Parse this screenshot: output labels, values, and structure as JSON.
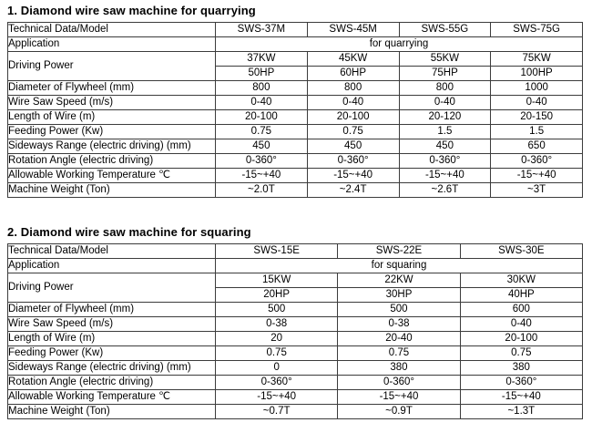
{
  "colors": {
    "background": "#ffffff",
    "text": "#000000",
    "table_border": "#3c3c3c"
  },
  "sections": [
    {
      "title": "1. Diamond wire saw machine for quarrying",
      "table": {
        "header": [
          "Technical Data/Model",
          "SWS-37M",
          "SWS-45M",
          "SWS-55G",
          "SWS-75G"
        ],
        "application": {
          "label": "Application",
          "value": "for quarrying"
        },
        "driving_power": {
          "label": "Driving Power",
          "kw": [
            "37KW",
            "45KW",
            "55KW",
            "75KW"
          ],
          "hp": [
            "50HP",
            "60HP",
            "75HP",
            "100HP"
          ]
        },
        "rows": [
          {
            "label": "Diameter of Flywheel (mm)",
            "values": [
              "800",
              "800",
              "800",
              "1000"
            ]
          },
          {
            "label": "Wire Saw Speed (m/s)",
            "values": [
              "0-40",
              "0-40",
              "0-40",
              "0-40"
            ]
          },
          {
            "label": "Length of Wire (m)",
            "values": [
              "20-100",
              "20-100",
              "20-120",
              "20-150"
            ]
          },
          {
            "label": "Feeding Power (Kw)",
            "values": [
              "0.75",
              "0.75",
              "1.5",
              "1.5"
            ]
          },
          {
            "label": "Sideways Range (electric driving) (mm)",
            "values": [
              "450",
              "450",
              "450",
              "650"
            ]
          },
          {
            "label": "Rotation Angle (electric driving)",
            "values": [
              "0-360°",
              "0-360°",
              "0-360°",
              "0-360°"
            ]
          },
          {
            "label": "Allowable Working Temperature ℃",
            "values": [
              "-15~+40",
              "-15~+40",
              "-15~+40",
              "-15~+40"
            ]
          },
          {
            "label": "Machine Weight (Ton)",
            "values": [
              "~2.0T",
              "~2.4T",
              "~2.6T",
              "~3T"
            ]
          }
        ]
      }
    },
    {
      "title": "2. Diamond wire saw machine for squaring",
      "table": {
        "header": [
          "Technical Data/Model",
          "SWS-15E",
          "SWS-22E",
          "SWS-30E"
        ],
        "application": {
          "label": "Application",
          "value": "for squaring"
        },
        "driving_power": {
          "label": "Driving Power",
          "kw": [
            "15KW",
            "22KW",
            "30KW"
          ],
          "hp": [
            "20HP",
            "30HP",
            "40HP"
          ]
        },
        "rows": [
          {
            "label": "Diameter of Flywheel (mm)",
            "values": [
              "500",
              "500",
              "600"
            ]
          },
          {
            "label": "Wire Saw Speed (m/s)",
            "values": [
              "0-38",
              "0-38",
              "0-40"
            ]
          },
          {
            "label": "Length of Wire (m)",
            "values": [
              "20",
              "20-40",
              "20-100"
            ]
          },
          {
            "label": "Feeding Power (Kw)",
            "values": [
              "0.75",
              "0.75",
              "0.75"
            ]
          },
          {
            "label": "Sideways Range (electric driving) (mm)",
            "values": [
              "0",
              "380",
              "380"
            ]
          },
          {
            "label": "Rotation Angle (electric driving)",
            "values": [
              "0-360°",
              "0-360°",
              "0-360°"
            ]
          },
          {
            "label": "Allowable Working Temperature ℃",
            "values": [
              "-15~+40",
              "-15~+40",
              "-15~+40"
            ]
          },
          {
            "label": "Machine Weight (Ton)",
            "values": [
              "~0.7T",
              "~0.9T",
              "~1.3T"
            ]
          }
        ]
      }
    }
  ]
}
